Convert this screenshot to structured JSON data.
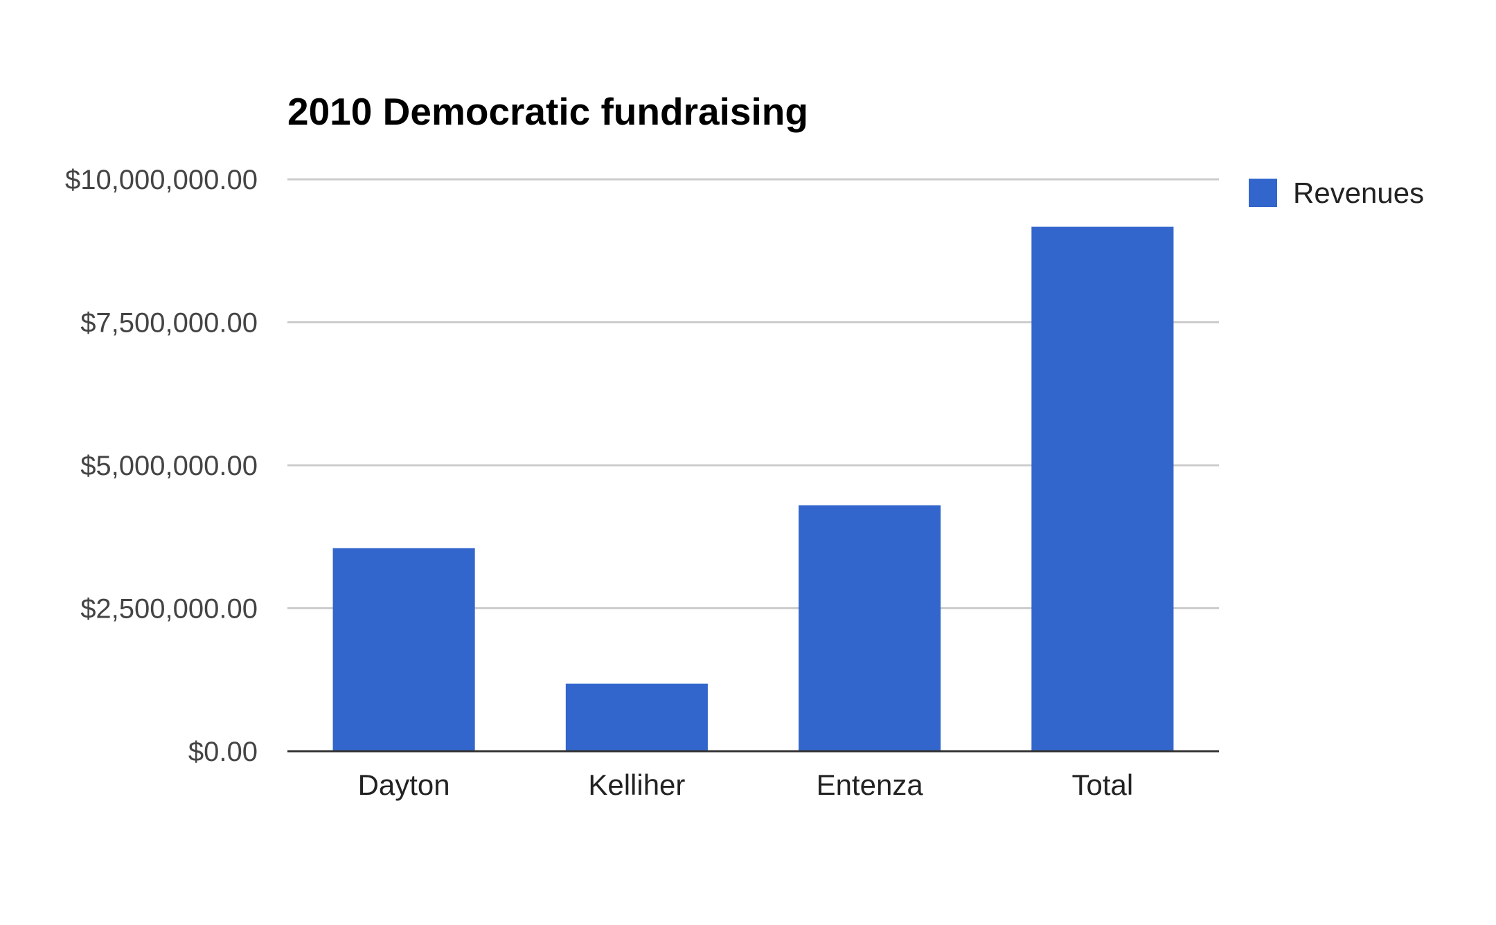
{
  "chart_data": {
    "type": "bar",
    "title": "2010 Democratic fundraising",
    "xlabel": "",
    "ylabel": "",
    "categories": [
      "Dayton",
      "Kelliher",
      "Entenza",
      "Total"
    ],
    "series": [
      {
        "name": "Revenues",
        "color": "#3366cc",
        "values": [
          3550000,
          1180000,
          4300000,
          9170000
        ]
      }
    ],
    "ylim": [
      0,
      10000000
    ],
    "yticks": [
      0,
      2500000,
      5000000,
      7500000,
      10000000
    ],
    "ytick_labels": [
      "$0.00",
      "$2,500,000.00",
      "$5,000,000.00",
      "$7,500,000.00",
      "$10,000,000.00"
    ],
    "grid": true,
    "legend_position": "right",
    "colors": {
      "bar": "#3366cc",
      "grid": "#cccccc",
      "axis": "#333333"
    }
  }
}
